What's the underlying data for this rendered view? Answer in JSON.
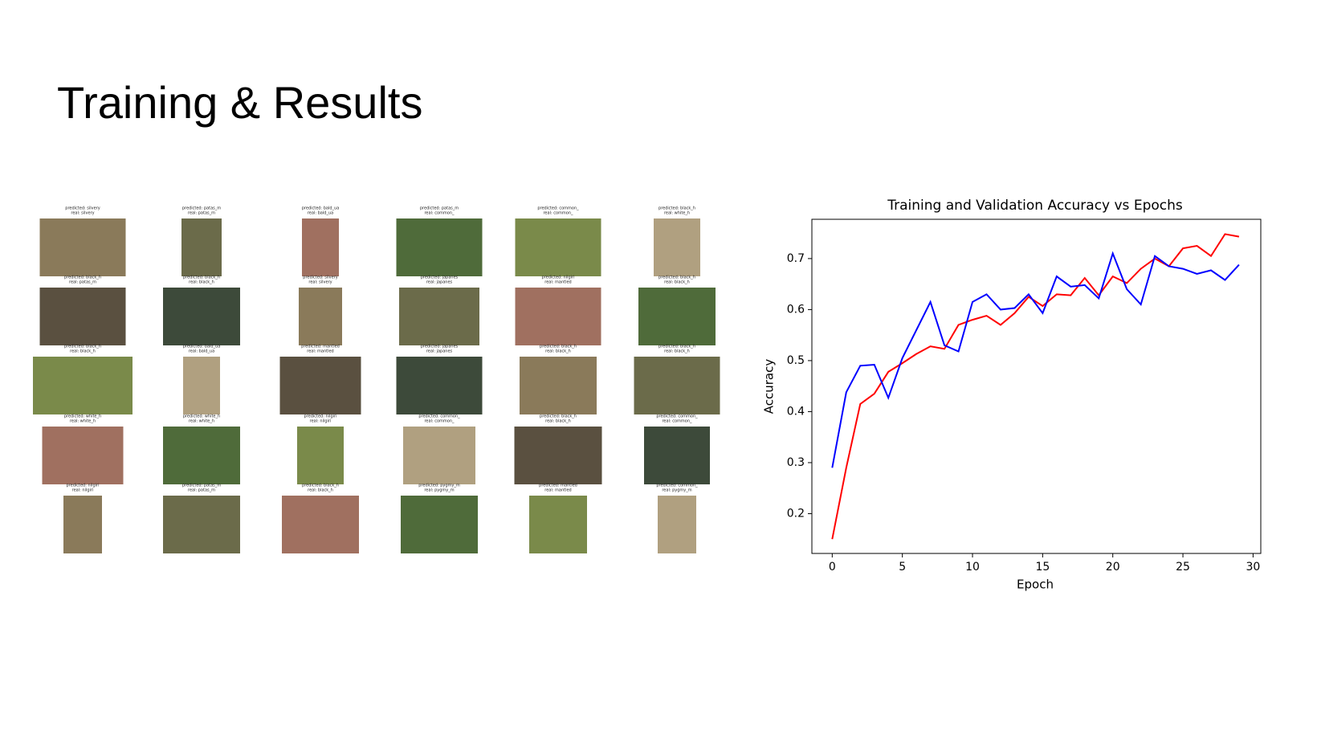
{
  "title": "Training & Results",
  "grid": {
    "rows": [
      [
        {
          "predicted": "predicted: silvery",
          "real": "real: silvery"
        },
        {
          "predicted": "predicted: patas_m",
          "real": "real: patas_m"
        },
        {
          "predicted": "predicted: bald_ua",
          "real": "real: bald_ua"
        },
        {
          "predicted": "predicted: patas_m",
          "real": "real: common_"
        },
        {
          "predicted": "predicted: common_",
          "real": "real: common_"
        },
        {
          "predicted": "predicted: black_h",
          "real": "real: white_h"
        }
      ],
      [
        {
          "predicted": "predicted: black_h",
          "real": "real: patas_m"
        },
        {
          "predicted": "predicted: black_h",
          "real": "real: black_h"
        },
        {
          "predicted": "predicted: silvery",
          "real": "real: silvery"
        },
        {
          "predicted": "predicted: japanes",
          "real": "real: japanes"
        },
        {
          "predicted": "predicted: nilgiri",
          "real": "real: mantled"
        },
        {
          "predicted": "predicted: black_h",
          "real": "real: black_h"
        }
      ],
      [
        {
          "predicted": "predicted: black_h",
          "real": "real: black_h"
        },
        {
          "predicted": "predicted: bald_ua",
          "real": "real: bald_ua"
        },
        {
          "predicted": "predicted: mantled",
          "real": "real: mantled"
        },
        {
          "predicted": "predicted: japanes",
          "real": "real: japanes"
        },
        {
          "predicted": "predicted: black_h",
          "real": "real: black_h"
        },
        {
          "predicted": "predicted: black_h",
          "real": "real: black_h"
        }
      ],
      [
        {
          "predicted": "predicted: white_h",
          "real": "real: white_h"
        },
        {
          "predicted": "predicted: white_h",
          "real": "real: white_h"
        },
        {
          "predicted": "predicted: nilgiri",
          "real": "real: nilgiri"
        },
        {
          "predicted": "predicted: common_",
          "real": "real: common_"
        },
        {
          "predicted": "predicted: black_h",
          "real": "real: black_h"
        },
        {
          "predicted": "predicted: common_",
          "real": "real: common_"
        }
      ],
      [
        {
          "predicted": "predicted: nilgiri",
          "real": "real: nilgiri"
        },
        {
          "predicted": "predicted: patas_m",
          "real": "real: patas_m"
        },
        {
          "predicted": "predicted: black_h",
          "real": "real: black_h"
        },
        {
          "predicted": "predicted: pygmy_m",
          "real": "real: pygmy_m"
        },
        {
          "predicted": "predicted: mantled",
          "real": "real: mantled"
        },
        {
          "predicted": "predicted: common_",
          "real": "real: pygmy_m"
        }
      ]
    ]
  },
  "chart_data": {
    "type": "line",
    "title": "Training and Validation Accuracy vs Epochs",
    "x_label": "Epoch",
    "y_label": "Accuracy",
    "x": [
      0,
      1,
      2,
      3,
      4,
      5,
      6,
      7,
      8,
      9,
      10,
      11,
      12,
      13,
      14,
      15,
      16,
      17,
      18,
      19,
      20,
      21,
      22,
      23,
      24,
      25,
      26,
      27,
      28,
      29
    ],
    "series": [
      {
        "color": "#ff0000",
        "values": [
          0.15,
          0.29,
          0.415,
          0.435,
          0.478,
          0.495,
          0.513,
          0.528,
          0.523,
          0.57,
          0.58,
          0.588,
          0.57,
          0.593,
          0.625,
          0.607,
          0.63,
          0.628,
          0.662,
          0.628,
          0.665,
          0.652,
          0.68,
          0.7,
          0.685,
          0.72,
          0.725,
          0.705,
          0.748,
          0.743
        ]
      },
      {
        "color": "#0000ff",
        "values": [
          0.29,
          0.438,
          0.49,
          0.492,
          0.427,
          0.505,
          0.56,
          0.615,
          0.53,
          0.518,
          0.615,
          0.63,
          0.6,
          0.603,
          0.63,
          0.593,
          0.665,
          0.645,
          0.648,
          0.622,
          0.71,
          0.64,
          0.61,
          0.705,
          0.685,
          0.68,
          0.67,
          0.677,
          0.658,
          0.688
        ]
      }
    ],
    "xlim": [
      -1.45,
      30.55
    ],
    "ylim": [
      0.122,
      0.777
    ],
    "xticks": [
      0,
      5,
      10,
      15,
      20,
      25,
      30
    ],
    "yticks": [
      0.2,
      0.3,
      0.4,
      0.5,
      0.6,
      0.7
    ],
    "grid": false
  }
}
